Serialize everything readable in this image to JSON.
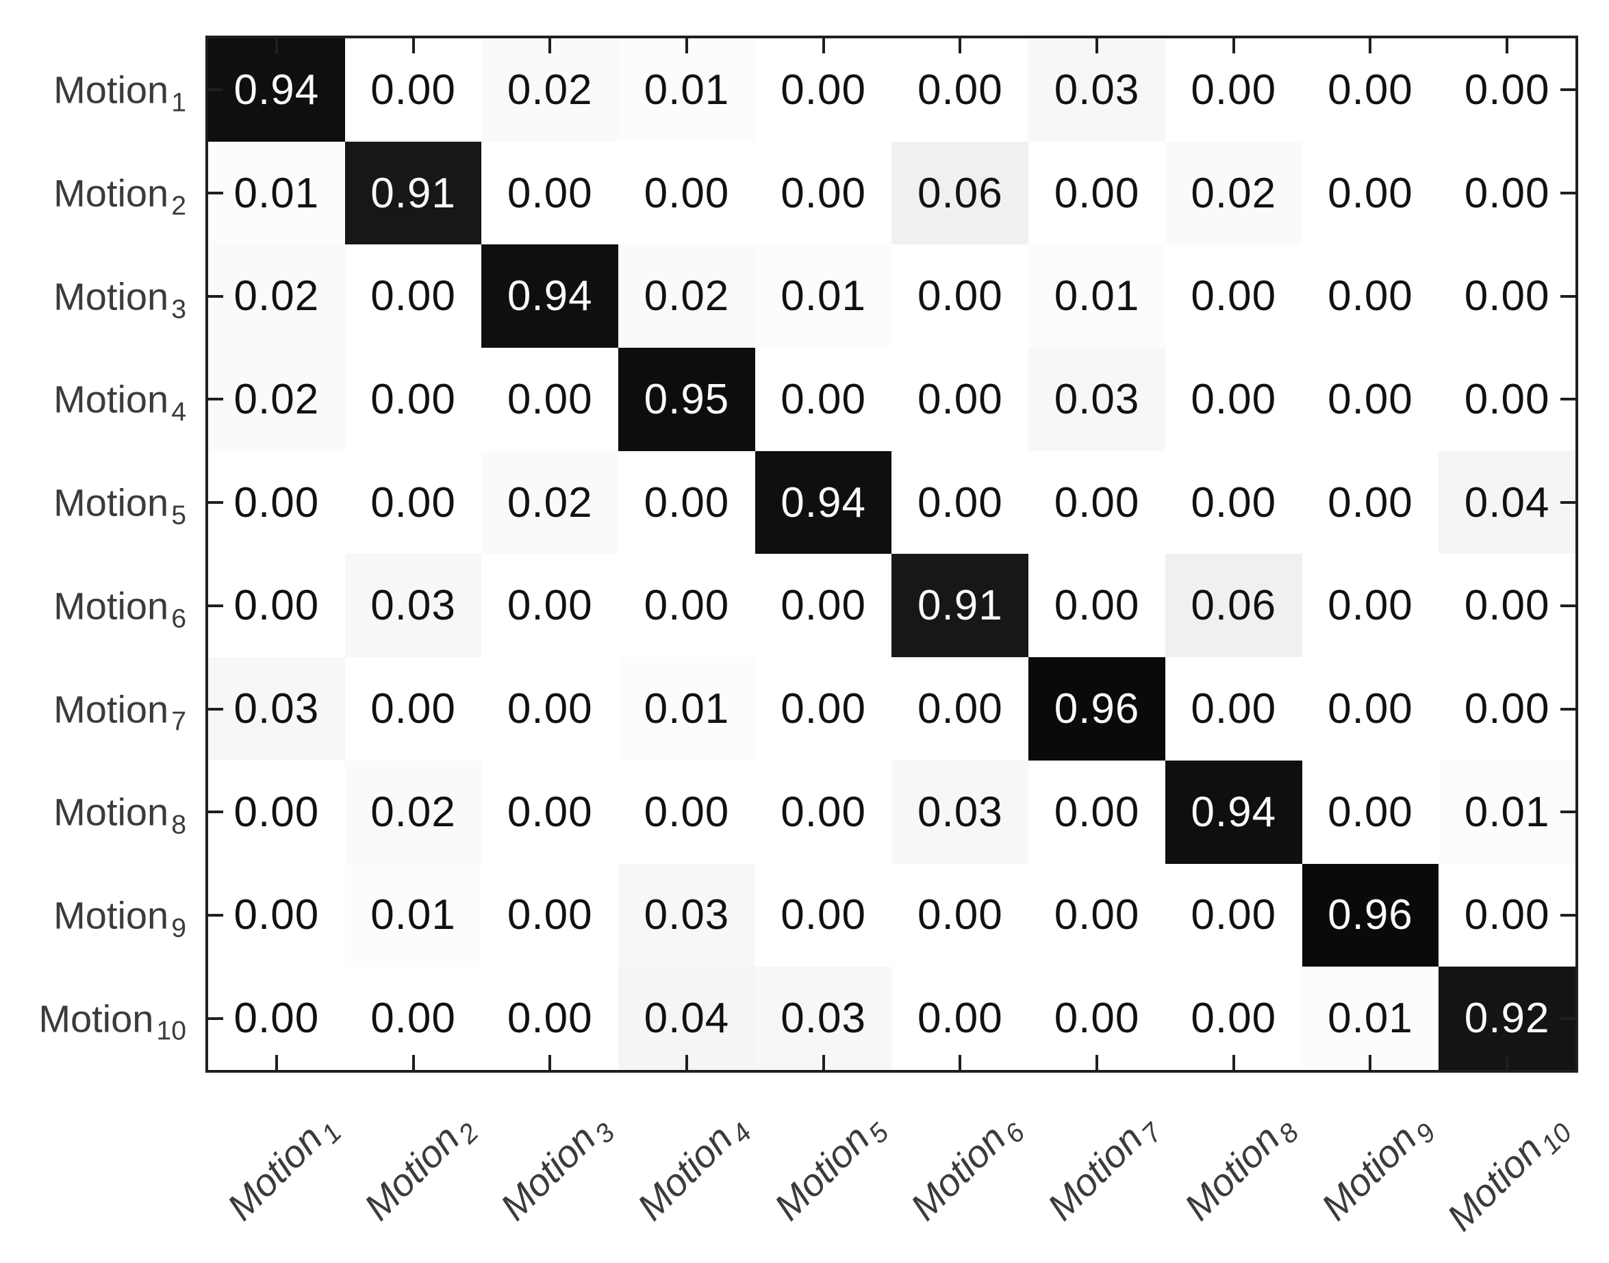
{
  "figure": {
    "kind": "confusion-matrix",
    "title": ""
  },
  "chart_data": {
    "type": "heatmap",
    "title": "",
    "xlabel": "",
    "ylabel": "",
    "legend": "none",
    "grid": "off",
    "value_range": [
      0,
      1
    ],
    "colormap": {
      "description": "grayscale, 0 = white, 1 = black",
      "min_color": "#ffffff",
      "max_color": "#000000"
    },
    "axis_color": "#1f1f1f",
    "label_color": "#3b3b3b",
    "diag_text_color": "#fafafa",
    "offdiag_text_color": "#111111",
    "y_axis": {
      "categories": [
        {
          "base": "Motion",
          "sub": "1"
        },
        {
          "base": "Motion",
          "sub": "2"
        },
        {
          "base": "Motion",
          "sub": "3"
        },
        {
          "base": "Motion",
          "sub": "4"
        },
        {
          "base": "Motion",
          "sub": "5"
        },
        {
          "base": "Motion",
          "sub": "6"
        },
        {
          "base": "Motion",
          "sub": "7"
        },
        {
          "base": "Motion",
          "sub": "8"
        },
        {
          "base": "Motion",
          "sub": "9"
        },
        {
          "base": "Motion",
          "sub": "10"
        }
      ]
    },
    "x_axis": {
      "categories": [
        {
          "base": "Motion",
          "sub": "1"
        },
        {
          "base": "Motion",
          "sub": "2"
        },
        {
          "base": "Motion",
          "sub": "3"
        },
        {
          "base": "Motion",
          "sub": "4"
        },
        {
          "base": "Motion",
          "sub": "5"
        },
        {
          "base": "Motion",
          "sub": "6"
        },
        {
          "base": "Motion",
          "sub": "7"
        },
        {
          "base": "Motion",
          "sub": "8"
        },
        {
          "base": "Motion",
          "sub": "9"
        },
        {
          "base": "Motion",
          "sub": "10"
        }
      ]
    },
    "matrix": [
      [
        "0.94",
        "0.00",
        "0.02",
        "0.01",
        "0.00",
        "0.00",
        "0.03",
        "0.00",
        "0.00",
        "0.00"
      ],
      [
        "0.01",
        "0.91",
        "0.00",
        "0.00",
        "0.00",
        "0.06",
        "0.00",
        "0.02",
        "0.00",
        "0.00"
      ],
      [
        "0.02",
        "0.00",
        "0.94",
        "0.02",
        "0.01",
        "0.00",
        "0.01",
        "0.00",
        "0.00",
        "0.00"
      ],
      [
        "0.02",
        "0.00",
        "0.00",
        "0.95",
        "0.00",
        "0.00",
        "0.03",
        "0.00",
        "0.00",
        "0.00"
      ],
      [
        "0.00",
        "0.00",
        "0.02",
        "0.00",
        "0.94",
        "0.00",
        "0.00",
        "0.00",
        "0.00",
        "0.04"
      ],
      [
        "0.00",
        "0.03",
        "0.00",
        "0.00",
        "0.00",
        "0.91",
        "0.00",
        "0.06",
        "0.00",
        "0.00"
      ],
      [
        "0.03",
        "0.00",
        "0.00",
        "0.01",
        "0.00",
        "0.00",
        "0.96",
        "0.00",
        "0.00",
        "0.00"
      ],
      [
        "0.00",
        "0.02",
        "0.00",
        "0.00",
        "0.00",
        "0.03",
        "0.00",
        "0.94",
        "0.00",
        "0.01"
      ],
      [
        "0.00",
        "0.01",
        "0.00",
        "0.03",
        "0.00",
        "0.00",
        "0.00",
        "0.00",
        "0.96",
        "0.00"
      ],
      [
        "0.00",
        "0.00",
        "0.00",
        "0.04",
        "0.03",
        "0.00",
        "0.00",
        "0.00",
        "0.01",
        "0.92"
      ]
    ]
  }
}
